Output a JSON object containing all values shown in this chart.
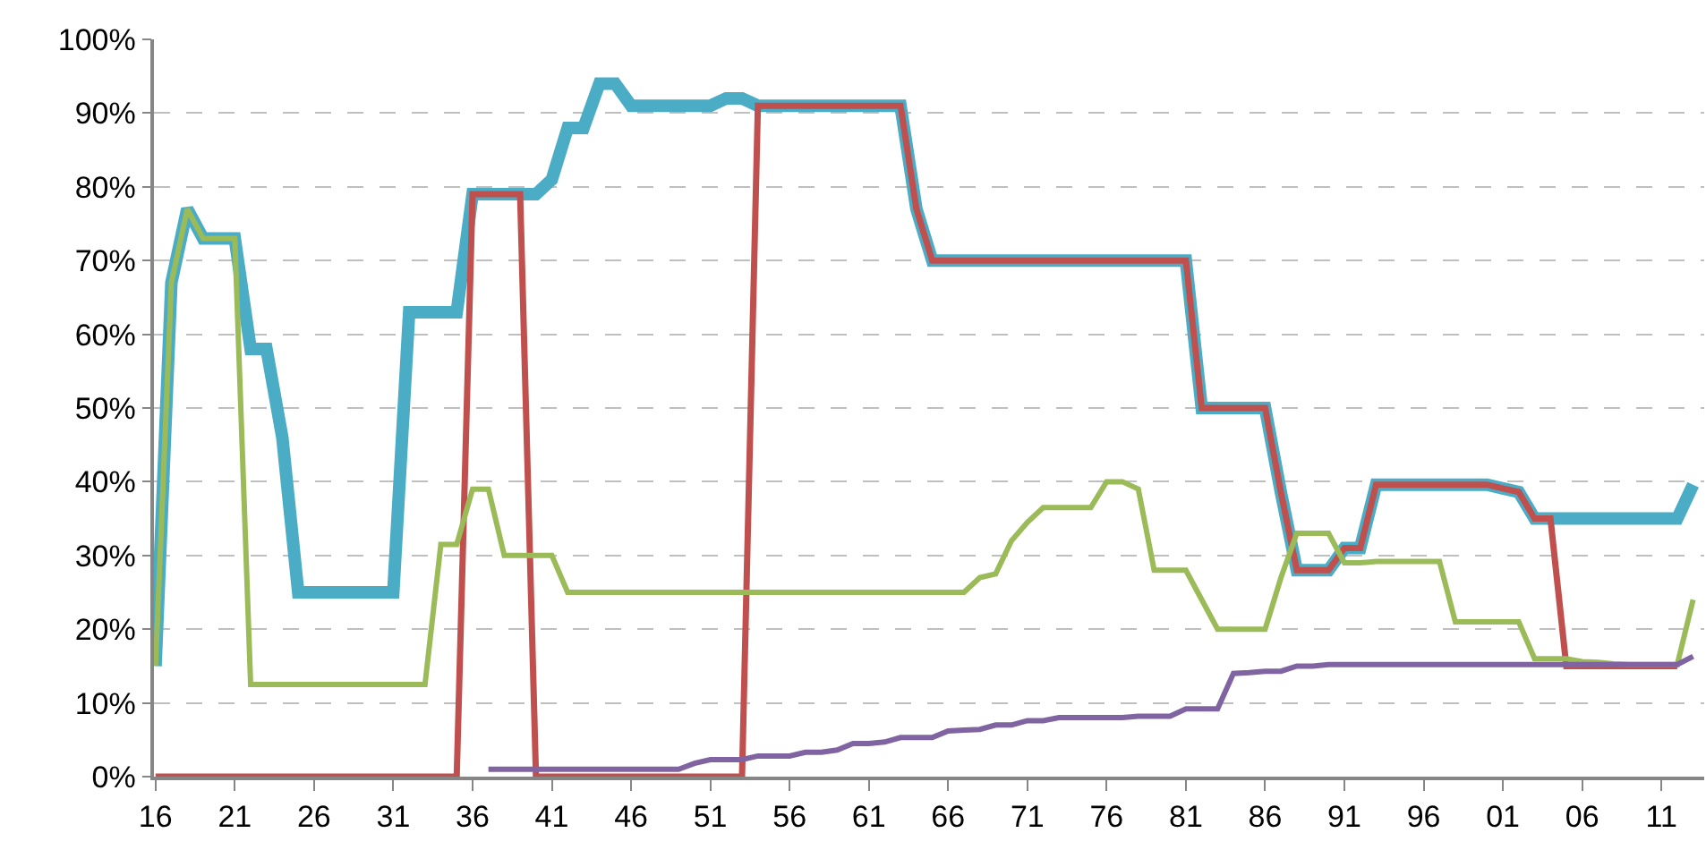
{
  "chart_data": {
    "type": "line",
    "x": [
      1916,
      1917,
      1918,
      1919,
      1920,
      1921,
      1922,
      1923,
      1924,
      1925,
      1926,
      1927,
      1928,
      1929,
      1930,
      1931,
      1932,
      1933,
      1934,
      1935,
      1936,
      1937,
      1938,
      1939,
      1940,
      1941,
      1942,
      1943,
      1944,
      1945,
      1946,
      1947,
      1948,
      1949,
      1950,
      1951,
      1952,
      1953,
      1954,
      1955,
      1956,
      1957,
      1958,
      1959,
      1960,
      1961,
      1962,
      1963,
      1964,
      1965,
      1966,
      1967,
      1968,
      1969,
      1970,
      1971,
      1972,
      1973,
      1974,
      1975,
      1976,
      1977,
      1978,
      1979,
      1980,
      1981,
      1982,
      1983,
      1984,
      1985,
      1986,
      1987,
      1988,
      1989,
      1990,
      1991,
      1992,
      1993,
      1994,
      1995,
      1996,
      1997,
      1998,
      1999,
      2000,
      2001,
      2002,
      2003,
      2004,
      2005,
      2006,
      2007,
      2008,
      2009,
      2010,
      2011,
      2012,
      2013
    ],
    "series": [
      {
        "color": "#4bacc6",
        "values": [
          15,
          67,
          77,
          73,
          73,
          73,
          58,
          58,
          46,
          25,
          25,
          25,
          25,
          25,
          25,
          25,
          63,
          63,
          63,
          63,
          79,
          79,
          79,
          79,
          79,
          81,
          88,
          88,
          94,
          94,
          91,
          91,
          91,
          91,
          91,
          91,
          92,
          92,
          91,
          91,
          91,
          91,
          91,
          91,
          91,
          91,
          91,
          91,
          77,
          70,
          70,
          70,
          70,
          70,
          70,
          70,
          70,
          70,
          70,
          70,
          70,
          70,
          70,
          70,
          70,
          70,
          50,
          50,
          50,
          50,
          50,
          38.5,
          28,
          28,
          28,
          31,
          31,
          39.6,
          39.6,
          39.6,
          39.6,
          39.6,
          39.6,
          39.6,
          39.6,
          39.1,
          38.6,
          35,
          35,
          35,
          35,
          35,
          35,
          35,
          35,
          35,
          35,
          39.6
        ]
      },
      {
        "color": "#c0504d",
        "values": [
          0,
          0,
          0,
          0,
          0,
          0,
          0,
          0,
          0,
          0,
          0,
          0,
          0,
          0,
          0,
          0,
          0,
          0,
          0,
          0,
          79,
          79,
          79,
          79,
          0,
          0,
          0,
          0,
          0,
          0,
          0,
          0,
          0,
          0,
          0,
          0,
          0,
          0,
          91,
          91,
          91,
          91,
          91,
          91,
          91,
          91,
          91,
          91,
          77,
          70,
          70,
          70,
          70,
          70,
          70,
          70,
          70,
          70,
          70,
          70,
          70,
          70,
          70,
          70,
          70,
          70,
          50,
          50,
          50,
          50,
          50,
          38.5,
          28,
          28,
          28,
          31,
          31,
          39.6,
          39.6,
          39.6,
          39.6,
          39.6,
          39.6,
          39.6,
          39.6,
          39.1,
          38.6,
          35,
          35,
          15,
          15,
          15,
          15,
          15,
          15,
          15,
          15,
          null
        ]
      },
      {
        "color": "#9bbb59",
        "values": [
          15,
          67,
          77,
          73,
          73,
          73,
          12.5,
          12.5,
          12.5,
          12.5,
          12.5,
          12.5,
          12.5,
          12.5,
          12.5,
          12.5,
          12.5,
          12.5,
          31.5,
          31.5,
          39,
          39,
          30,
          30,
          30,
          30,
          25,
          25,
          25,
          25,
          25,
          25,
          25,
          25,
          25,
          25,
          25,
          25,
          25,
          25,
          25,
          25,
          25,
          25,
          25,
          25,
          25,
          25,
          25,
          25,
          25,
          25,
          27,
          27.5,
          32,
          34.5,
          36.5,
          36.5,
          36.5,
          36.5,
          40,
          40,
          39,
          28,
          28,
          28,
          24,
          20,
          20,
          20,
          20,
          27,
          33,
          33,
          33,
          29,
          29,
          29.2,
          29.2,
          29.2,
          29.2,
          29.2,
          21,
          21,
          21,
          21,
          21,
          16,
          16,
          16,
          15.6,
          15.5,
          15.3,
          15.2,
          15.2,
          15.2,
          15.2,
          24
        ]
      },
      {
        "color": "#8064a2",
        "values": [
          null,
          null,
          null,
          null,
          null,
          null,
          null,
          null,
          null,
          null,
          null,
          null,
          null,
          null,
          null,
          null,
          null,
          null,
          null,
          null,
          null,
          1,
          1,
          1,
          1,
          1,
          1,
          1,
          1,
          1,
          1,
          1,
          1,
          1,
          1.8,
          2.3,
          2.3,
          2.3,
          2.8,
          2.8,
          2.8,
          3.3,
          3.3,
          3.6,
          4.5,
          4.5,
          4.7,
          5.3,
          5.3,
          5.3,
          6.2,
          6.3,
          6.4,
          7.0,
          7.0,
          7.6,
          7.6,
          8.0,
          8.0,
          8.0,
          8.0,
          8.0,
          8.2,
          8.2,
          8.2,
          9.2,
          9.2,
          9.2,
          14,
          14.1,
          14.3,
          14.3,
          15,
          15,
          15.2,
          15.2,
          15.2,
          15.2,
          15.2,
          15.2,
          15.2,
          15.2,
          15.2,
          15.2,
          15.2,
          15.2,
          15.2,
          15.2,
          15.2,
          15.2,
          15.2,
          15.2,
          15.2,
          15.2,
          15.2,
          15.2,
          15.2,
          16.3
        ]
      }
    ],
    "xlim": [
      1915.9,
      2013.7
    ],
    "xticks": [
      {
        "value": 1916,
        "label": "16"
      },
      {
        "value": 1921,
        "label": "21"
      },
      {
        "value": 1926,
        "label": "26"
      },
      {
        "value": 1931,
        "label": "31"
      },
      {
        "value": 1936,
        "label": "36"
      },
      {
        "value": 1941,
        "label": "41"
      },
      {
        "value": 1946,
        "label": "46"
      },
      {
        "value": 1951,
        "label": "51"
      },
      {
        "value": 1956,
        "label": "56"
      },
      {
        "value": 1961,
        "label": "61"
      },
      {
        "value": 1966,
        "label": "66"
      },
      {
        "value": 1971,
        "label": "71"
      },
      {
        "value": 1976,
        "label": "76"
      },
      {
        "value": 1981,
        "label": "81"
      },
      {
        "value": 1986,
        "label": "86"
      },
      {
        "value": 1991,
        "label": "91"
      },
      {
        "value": 1996,
        "label": "96"
      },
      {
        "value": 2001,
        "label": "01"
      },
      {
        "value": 2006,
        "label": "06"
      },
      {
        "value": 2011,
        "label": "11"
      }
    ],
    "ylim": [
      0,
      100
    ],
    "yticks": [
      {
        "value": 0,
        "label": "0%"
      },
      {
        "value": 10,
        "label": "10%"
      },
      {
        "value": 20,
        "label": "20%"
      },
      {
        "value": 30,
        "label": "30%"
      },
      {
        "value": 40,
        "label": "40%"
      },
      {
        "value": 50,
        "label": "50%"
      },
      {
        "value": 60,
        "label": "60%"
      },
      {
        "value": 70,
        "label": "70%"
      },
      {
        "value": 80,
        "label": "80%"
      },
      {
        "value": 90,
        "label": "90%"
      },
      {
        "value": 100,
        "label": "100%"
      }
    ],
    "grid": "y",
    "marker": "none",
    "line_style": "solid"
  }
}
